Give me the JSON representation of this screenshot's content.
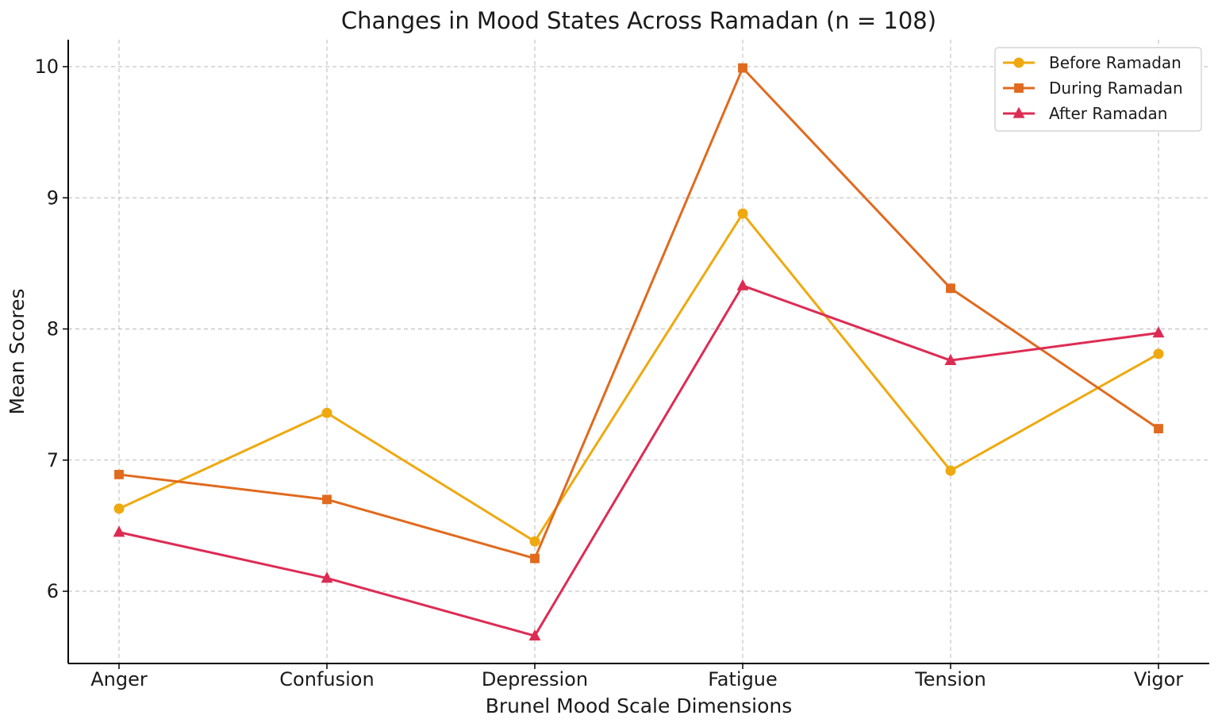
{
  "chart_data": {
    "type": "line",
    "title": "Changes in Mood States Across Ramadan (n = 108)",
    "xlabel": "Brunel Mood Scale Dimensions",
    "ylabel": "Mean Scores",
    "categories": [
      "Anger",
      "Confusion",
      "Depression",
      "Fatigue",
      "Tension",
      "Vigor"
    ],
    "yticks": [
      6,
      7,
      8,
      9,
      10
    ],
    "ylim": [
      5.45,
      10.2
    ],
    "grid": true,
    "legend_position": "top-right",
    "series": [
      {
        "name": "Before Ramadan",
        "values": [
          6.63,
          7.36,
          6.38,
          8.88,
          6.92,
          7.81
        ],
        "color": "#EFA90F",
        "marker": "circle"
      },
      {
        "name": "During Ramadan",
        "values": [
          6.89,
          6.7,
          6.25,
          9.99,
          8.31,
          7.24
        ],
        "color": "#E06A1E",
        "marker": "square"
      },
      {
        "name": "After Ramadan",
        "values": [
          6.45,
          6.1,
          5.66,
          8.33,
          7.76,
          7.97
        ],
        "color": "#DD2C54",
        "marker": "triangle"
      }
    ]
  }
}
